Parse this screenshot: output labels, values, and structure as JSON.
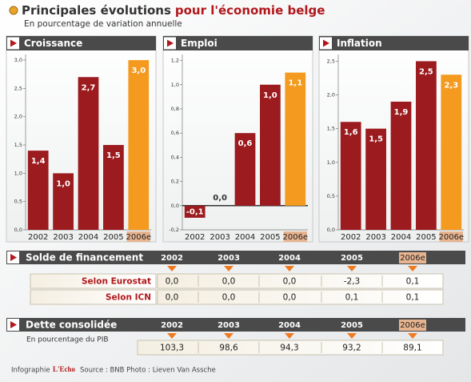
{
  "title": "Principales évolutions",
  "title_highlight": "pour l'économie belge",
  "subtitle": "En pourcentage de variation annuelle",
  "chart_data": [
    {
      "type": "bar",
      "title": "Croissance",
      "categories": [
        "2002",
        "2003",
        "2004",
        "2005",
        "2006e"
      ],
      "values": [
        1.4,
        1.0,
        2.7,
        1.5,
        3.0
      ],
      "value_labels": [
        "1,4",
        "1,0",
        "2,7",
        "1,5",
        "3,0"
      ],
      "colors": [
        "#9b1b1e",
        "#9b1b1e",
        "#9b1b1e",
        "#9b1b1e",
        "#f39a1f"
      ],
      "ylim": [
        0,
        3.1
      ],
      "yticks": [
        {
          "value": 0,
          "label": "0,0"
        },
        {
          "value": 0.5,
          "label": "0,5"
        },
        {
          "value": 1,
          "label": "1,0"
        },
        {
          "value": 1.5,
          "label": "1,5"
        },
        {
          "value": 2,
          "label": "2,0"
        },
        {
          "value": 2.5,
          "label": "2,5"
        },
        {
          "value": 3,
          "label": "3,0"
        }
      ]
    },
    {
      "type": "bar",
      "title": "Emploi",
      "categories": [
        "2002",
        "2003",
        "2004",
        "2005",
        "2006e"
      ],
      "values": [
        -0.1,
        0.0,
        0.6,
        1.0,
        1.1
      ],
      "value_labels": [
        "-0,1",
        "0,0",
        "0,6",
        "1,0",
        "1,1"
      ],
      "colors": [
        "#9b1b1e",
        "#9b1b1e",
        "#9b1b1e",
        "#9b1b1e",
        "#f39a1f"
      ],
      "ylim": [
        -0.2,
        1.25
      ],
      "yticks": [
        {
          "value": -0.2,
          "label": "-0,2"
        },
        {
          "value": 0,
          "label": "0,0"
        },
        {
          "value": 0.2,
          "label": "0,2"
        },
        {
          "value": 0.4,
          "label": "0,4"
        },
        {
          "value": 0.6,
          "label": "0,6"
        },
        {
          "value": 0.8,
          "label": "0,8"
        },
        {
          "value": 1,
          "label": "1,0"
        },
        {
          "value": 1.2,
          "label": "1,2"
        }
      ]
    },
    {
      "type": "bar",
      "title": "Inflation",
      "categories": [
        "2002",
        "2003",
        "2004",
        "2005",
        "2006e"
      ],
      "values": [
        1.6,
        1.5,
        1.9,
        2.5,
        2.3
      ],
      "value_labels": [
        "1,6",
        "1,5",
        "1,9",
        "2,5",
        "2,3"
      ],
      "colors": [
        "#9b1b1e",
        "#9b1b1e",
        "#9b1b1e",
        "#9b1b1e",
        "#f39a1f"
      ],
      "ylim": [
        0,
        2.6
      ],
      "yticks": [
        {
          "value": 0,
          "label": "0,0"
        },
        {
          "value": 0.5,
          "label": "0,5"
        },
        {
          "value": 1,
          "label": "1,0"
        },
        {
          "value": 1.5,
          "label": "1,5"
        },
        {
          "value": 2,
          "label": "2,0"
        },
        {
          "value": 2.5,
          "label": "2,5"
        }
      ]
    }
  ],
  "financing": {
    "title": "Solde de financement",
    "columns": [
      "2002",
      "2003",
      "2004",
      "2005",
      "2006e"
    ],
    "rows": [
      {
        "label": "Selon Eurostat",
        "values": [
          "0,0",
          "0,0",
          "0,0",
          "-2,3",
          "0,1"
        ]
      },
      {
        "label": "Selon ICN",
        "values": [
          "0,0",
          "0,0",
          "0,0",
          "0,1",
          "0,1"
        ]
      }
    ]
  },
  "debt": {
    "title": "Dette consolidée",
    "note": "En pourcentage du PIB",
    "columns": [
      "2002",
      "2003",
      "2004",
      "2005",
      "2006e"
    ],
    "values": [
      "103,3",
      "98,6",
      "94,3",
      "93,2",
      "89,1"
    ]
  },
  "footer": {
    "credit": "Infographie",
    "brand": "L'Echo",
    "source": "Source : BNB  Photo : Lieven Van Assche"
  }
}
